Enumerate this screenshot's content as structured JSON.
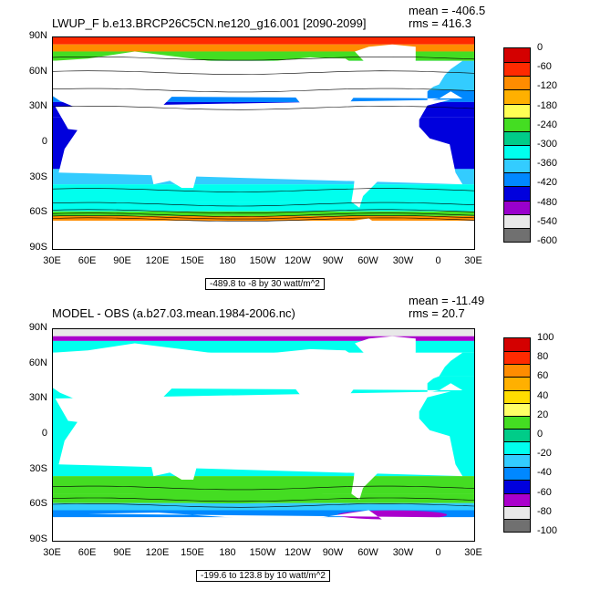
{
  "panels": [
    {
      "title": "LWUP_F b.e13.BRCP26C5CN.ne120_g16.001 [2090-2099]",
      "mean": "mean = -406.5",
      "rms": "rms = 416.3",
      "range_label": "-489.8 to -8 by 30 watt/m^2",
      "colorbar_labels": [
        "0",
        "-60",
        "-120",
        "-180",
        "-240",
        "-300",
        "-360",
        "-420",
        "-480",
        "-540",
        "-600"
      ],
      "colors": [
        "#d40000",
        "#ff2a00",
        "#ff6600",
        "#ff9900",
        "#ffcc00",
        "#ffff33",
        "#66dd22",
        "#00cc66",
        "#00ffcc",
        "#33ddff",
        "#00b4ff",
        "#0066ff",
        "#0000cc",
        "#6600cc",
        "#a020f0",
        "#e0e0e0",
        "#707070"
      ]
    },
    {
      "title": "MODEL - OBS (a.b27.03.mean.1984-2006.nc)",
      "mean": "mean = -11.49",
      "rms": "rms = 20.7",
      "range_label": "-199.6 to 123.8 by 10 watt/m^2",
      "colorbar_labels": [
        "100",
        "80",
        "60",
        "40",
        "20",
        "0",
        "-20",
        "-40",
        "-60",
        "-80",
        "-100"
      ],
      "colors": [
        "#d40000",
        "#ff2a00",
        "#ff6600",
        "#ff9900",
        "#ffcc00",
        "#ffff33",
        "#66dd22",
        "#00cc66",
        "#00ffcc",
        "#33ddff",
        "#00b4ff",
        "#0066ff",
        "#0000cc",
        "#6600cc",
        "#a020f0",
        "#e0e0e0",
        "#707070"
      ]
    }
  ],
  "lat_labels": [
    "90N",
    "60N",
    "30N",
    "0",
    "30S",
    "60S",
    "90S"
  ],
  "lon_labels": [
    "30E",
    "60E",
    "90E",
    "120E",
    "150E",
    "180",
    "150W",
    "120W",
    "90W",
    "60W",
    "30W",
    "0",
    "30E"
  ]
}
